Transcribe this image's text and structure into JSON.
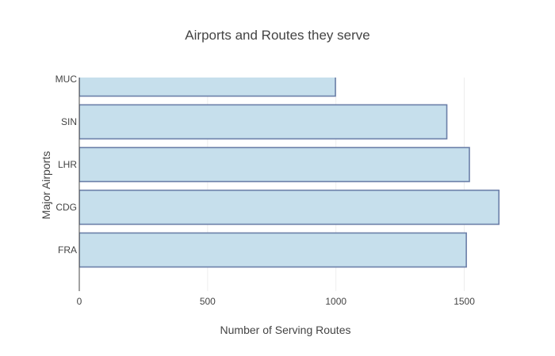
{
  "chart_data": {
    "type": "bar",
    "orientation": "horizontal",
    "title": "Airports and Routes they serve",
    "xlabel": "Number of Serving Routes",
    "ylabel": "Major Airports",
    "categories": [
      "FRA",
      "CDG",
      "LHR",
      "SIN",
      "MUC"
    ],
    "values": [
      1508,
      1635,
      1520,
      1432,
      998
    ],
    "xlim": [
      0,
      1730
    ],
    "xticks": [
      0,
      500,
      1000,
      1500
    ],
    "xtick_labels": [
      "0",
      "500",
      "1000",
      "1500"
    ],
    "grid": true,
    "colors": {
      "bar_fill": "#c6dfec",
      "bar_stroke": "#6b7fa8"
    }
  }
}
